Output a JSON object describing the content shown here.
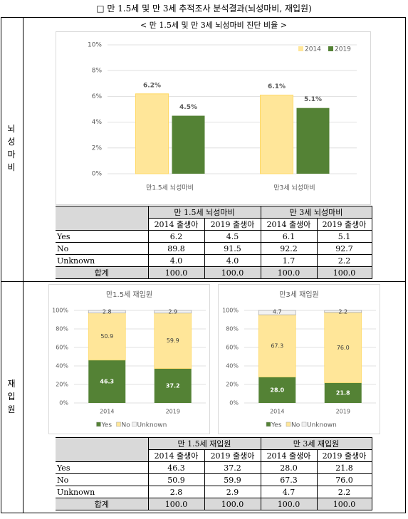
{
  "title": "□ 만 1.5세 및 만 3세 추적조사 분석결과(뇌성마비, 재입원)",
  "row_labels": [
    "뇌성마비",
    "재입원"
  ],
  "chart_data": [
    {
      "type": "bar",
      "title": "< 만 1.5세 및 만 3세 뇌성마비 진단 비율 >",
      "categories": [
        "만1.5세 뇌성마비",
        "만3세 뇌성마비"
      ],
      "series": [
        {
          "name": "2014",
          "color": "#ffe699",
          "values": [
            6.2,
            6.1
          ],
          "value_labels": [
            "6.2%",
            "6.1%"
          ]
        },
        {
          "name": "2019",
          "color": "#548235",
          "values": [
            4.5,
            5.1
          ],
          "value_labels": [
            "4.5%",
            "5.1%"
          ]
        }
      ],
      "ylim": [
        0,
        10
      ],
      "yticks": [
        {
          "value": 0,
          "label": "0%"
        },
        {
          "value": 2,
          "label": "2%"
        },
        {
          "value": 4,
          "label": "4%"
        },
        {
          "value": 6,
          "label": "6%"
        },
        {
          "value": 8,
          "label": "8%"
        },
        {
          "value": 10,
          "label": "10%"
        }
      ],
      "grid": true,
      "legend": "top-right"
    },
    {
      "type": "stacked-bar",
      "title": "만1.5세 재입원",
      "categories": [
        "2014",
        "2019"
      ],
      "series": [
        {
          "name": "Yes",
          "color": "#548235",
          "values": [
            46.3,
            37.2
          ]
        },
        {
          "name": "No",
          "color": "#ffe699",
          "values": [
            50.9,
            59.9
          ]
        },
        {
          "name": "Unknown",
          "color": "#f2f2f2",
          "values": [
            2.8,
            2.9
          ]
        }
      ],
      "ylim": [
        0,
        100
      ],
      "yticks": [
        {
          "value": 0,
          "label": "0%"
        },
        {
          "value": 20,
          "label": "20%"
        },
        {
          "value": 40,
          "label": "40%"
        },
        {
          "value": 60,
          "label": "60%"
        },
        {
          "value": 80,
          "label": "80%"
        },
        {
          "value": 100,
          "label": "100%"
        }
      ],
      "grid": true,
      "legend": "bottom"
    },
    {
      "type": "stacked-bar",
      "title": "만3세 재입원",
      "categories": [
        "2014",
        "2019"
      ],
      "series": [
        {
          "name": "Yes",
          "color": "#548235",
          "values": [
            28.0,
            21.8
          ],
          "value_labels": [
            "28.0",
            "21.8"
          ]
        },
        {
          "name": "No",
          "color": "#ffe699",
          "values": [
            67.3,
            76.0
          ],
          "value_labels": [
            "67.3",
            "76.0"
          ]
        },
        {
          "name": "Unknown",
          "color": "#f2f2f2",
          "values": [
            4.7,
            2.2
          ],
          "value_labels": [
            "4.7",
            "2.2"
          ]
        }
      ],
      "ylim": [
        0,
        100
      ],
      "yticks": [
        {
          "value": 0,
          "label": "0%"
        },
        {
          "value": 20,
          "label": "20%"
        },
        {
          "value": 40,
          "label": "40%"
        },
        {
          "value": 60,
          "label": "60%"
        },
        {
          "value": 80,
          "label": "80%"
        },
        {
          "value": 100,
          "label": "100%"
        }
      ],
      "grid": true,
      "legend": "bottom"
    }
  ],
  "tables": [
    {
      "groups": [
        "만 1.5세 뇌성마비",
        "만 3세 뇌성마비"
      ],
      "columns": [
        "2014 출생아",
        "2019 출생아",
        "2014 출생아",
        "2019 출생아"
      ],
      "rows": [
        [
          "Yes",
          "6.2",
          "4.5",
          "6.1",
          "5.1"
        ],
        [
          "No",
          "89.8",
          "91.5",
          "92.2",
          "92.7"
        ],
        [
          "Unknown",
          "4.0",
          "4.0",
          "1.7",
          "2.2"
        ],
        [
          "합계",
          "100.0",
          "100.0",
          "100.0",
          "100.0"
        ]
      ]
    },
    {
      "groups": [
        "만 1.5세 재입원",
        "만 3세 재입원"
      ],
      "columns": [
        "2014 출생아",
        "2019 출생아",
        "2014 출생아",
        "2019 출생아"
      ],
      "rows": [
        [
          "Yes",
          "46.3",
          "37.2",
          "28.0",
          "21.8"
        ],
        [
          "No",
          "50.9",
          "59.9",
          "67.3",
          "76.0"
        ],
        [
          "Unknown",
          "2.8",
          "2.9",
          "4.7",
          "2.2"
        ],
        [
          "합계",
          "100.0",
          "100.0",
          "100.0",
          "100.0"
        ]
      ]
    }
  ]
}
